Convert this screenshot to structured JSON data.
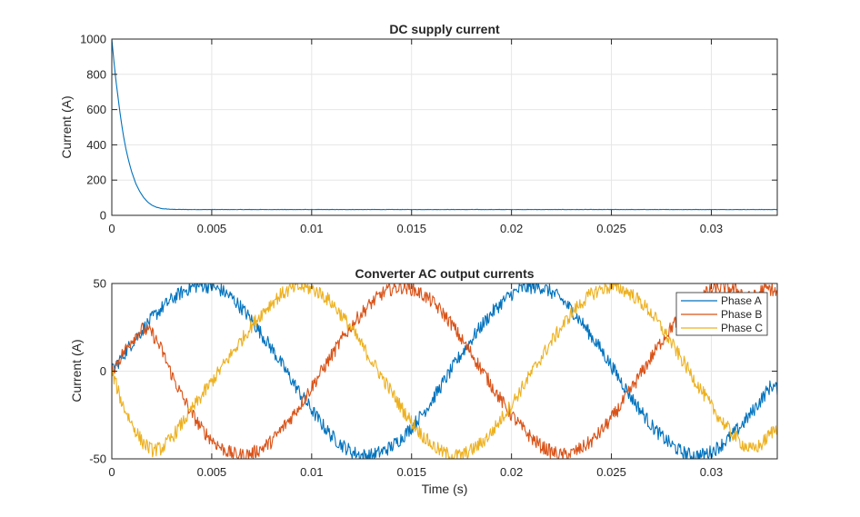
{
  "chart_data": [
    {
      "type": "line",
      "title": "DC supply current",
      "xlabel": "",
      "ylabel": "Current (A)",
      "xlim": [
        0,
        0.0333
      ],
      "ylim": [
        0,
        1000
      ],
      "x_ticks": [
        "0",
        "0.005",
        "0.01",
        "0.015",
        "0.02",
        "0.025",
        "0.03"
      ],
      "x_tick_values": [
        0,
        0.005,
        0.01,
        0.015,
        0.02,
        0.025,
        0.03
      ],
      "y_ticks": [
        "0",
        "200",
        "400",
        "600",
        "800",
        "1000"
      ],
      "y_tick_values": [
        0,
        200,
        400,
        600,
        800,
        1000
      ],
      "grid": true,
      "series": [
        {
          "color": "#0072BD",
          "x": [
            0,
            0.0001,
            0.0002,
            0.0003,
            0.0004,
            0.0005,
            0.0006,
            0.0007,
            0.0008,
            0.0009,
            0.001,
            0.0012,
            0.0014,
            0.0016,
            0.0018,
            0.002,
            0.0022,
            0.0025,
            0.003,
            0.004,
            0.005,
            0.007,
            0.01,
            0.015,
            0.02,
            0.025,
            0.03,
            0.0333
          ],
          "y": [
            1000,
            880,
            770,
            680,
            590,
            510,
            440,
            380,
            330,
            285,
            245,
            180,
            135,
            100,
            75,
            58,
            47,
            38,
            34,
            33,
            33,
            33,
            33,
            33,
            33,
            33,
            33,
            33
          ]
        }
      ]
    },
    {
      "type": "line",
      "title": "Converter AC output currents",
      "xlabel": "Time (s)",
      "ylabel": "Current (A)",
      "xlim": [
        0,
        0.0333
      ],
      "ylim": [
        -50,
        50
      ],
      "x_ticks": [
        "0",
        "0.005",
        "0.01",
        "0.015",
        "0.02",
        "0.025",
        "0.03"
      ],
      "x_tick_values": [
        0,
        0.005,
        0.01,
        0.015,
        0.02,
        0.025,
        0.03
      ],
      "y_ticks": [
        "-50",
        "0",
        "50"
      ],
      "y_tick_values": [
        -50,
        0,
        50
      ],
      "grid": true,
      "legend": "top-right",
      "series": [
        {
          "name": "Phase A",
          "color": "#0072BD",
          "x": [
            0,
            0.0005,
            0.001,
            0.0015,
            0.002,
            0.0025,
            0.003,
            0.0035,
            0.004,
            0.0045,
            0.005,
            0.0055,
            0.006,
            0.0065,
            0.007,
            0.0075,
            0.008,
            0.0085,
            0.009,
            0.0095,
            0.01,
            0.0105,
            0.011,
            0.0115,
            0.012,
            0.0125,
            0.013,
            0.0135,
            0.014,
            0.0145,
            0.015,
            0.0155,
            0.016,
            0.0165,
            0.017,
            0.0175,
            0.018,
            0.0185,
            0.019,
            0.0195,
            0.02,
            0.0205,
            0.021,
            0.0215,
            0.022,
            0.0225,
            0.023,
            0.0235,
            0.024,
            0.0245,
            0.025,
            0.0255,
            0.026,
            0.0265,
            0.027,
            0.0275,
            0.028,
            0.0285,
            0.029,
            0.0295,
            0.03,
            0.0305,
            0.031,
            0.0315,
            0.032,
            0.0325,
            0.033,
            0.0333
          ],
          "y": [
            0,
            8,
            16,
            23,
            30,
            36,
            41,
            45,
            48,
            49,
            48,
            46,
            42,
            36,
            29,
            21,
            13,
            4,
            -5,
            -14,
            -22,
            -30,
            -37,
            -42,
            -46,
            -48,
            -48,
            -46,
            -43,
            -38,
            -32,
            -25,
            -17,
            -8,
            1,
            10,
            18,
            26,
            33,
            39,
            44,
            47,
            48,
            48,
            45,
            41,
            35,
            28,
            20,
            12,
            3,
            -6,
            -15,
            -23,
            -31,
            -37,
            -42,
            -46,
            -48,
            -48,
            -46,
            -42,
            -37,
            -31,
            -24,
            -16,
            -8,
            -10
          ]
        },
        {
          "name": "Phase B",
          "color": "#D95319",
          "x": [
            0,
            0.0005,
            0.001,
            0.0015,
            0.002,
            0.0025,
            0.003,
            0.0035,
            0.004,
            0.0045,
            0.005,
            0.0055,
            0.006,
            0.0065,
            0.007,
            0.0075,
            0.008,
            0.0085,
            0.009,
            0.0095,
            0.01,
            0.0105,
            0.011,
            0.0115,
            0.012,
            0.0125,
            0.013,
            0.0135,
            0.014,
            0.0145,
            0.015,
            0.0155,
            0.016,
            0.0165,
            0.017,
            0.0175,
            0.018,
            0.0185,
            0.019,
            0.0195,
            0.02,
            0.0205,
            0.021,
            0.0215,
            0.022,
            0.0225,
            0.023,
            0.0235,
            0.024,
            0.0245,
            0.025,
            0.0255,
            0.026,
            0.0265,
            0.027,
            0.0275,
            0.028,
            0.0285,
            0.029,
            0.0295,
            0.03,
            0.0305,
            0.031,
            0.0315,
            0.032,
            0.0325,
            0.033,
            0.0333
          ],
          "y": [
            0,
            9,
            18,
            24,
            22,
            12,
            -2,
            -14,
            -24,
            -33,
            -39,
            -44,
            -47,
            -48,
            -47,
            -44,
            -40,
            -33,
            -26,
            -18,
            -9,
            0,
            9,
            18,
            26,
            33,
            39,
            44,
            47,
            48,
            47,
            44,
            40,
            34,
            27,
            18,
            10,
            1,
            -8,
            -17,
            -25,
            -32,
            -38,
            -43,
            -46,
            -48,
            -47,
            -44,
            -40,
            -34,
            -27,
            -19,
            -10,
            -1,
            8,
            17,
            25,
            32,
            38,
            43,
            46,
            48,
            47,
            45,
            41,
            46,
            47,
            44
          ]
        },
        {
          "name": "Phase C",
          "color": "#EDB120",
          "x": [
            0,
            0.0005,
            0.001,
            0.0015,
            0.002,
            0.0025,
            0.003,
            0.0035,
            0.004,
            0.0045,
            0.005,
            0.0055,
            0.006,
            0.0065,
            0.007,
            0.0075,
            0.008,
            0.0085,
            0.009,
            0.0095,
            0.01,
            0.0105,
            0.011,
            0.0115,
            0.012,
            0.0125,
            0.013,
            0.0135,
            0.014,
            0.0145,
            0.015,
            0.0155,
            0.016,
            0.0165,
            0.017,
            0.0175,
            0.018,
            0.0185,
            0.019,
            0.0195,
            0.02,
            0.0205,
            0.021,
            0.0215,
            0.022,
            0.0225,
            0.023,
            0.0235,
            0.024,
            0.0245,
            0.025,
            0.0255,
            0.026,
            0.0265,
            0.027,
            0.0275,
            0.028,
            0.0285,
            0.029,
            0.0295,
            0.03,
            0.0305,
            0.031,
            0.0315,
            0.032,
            0.0325,
            0.033,
            0.0333
          ],
          "y": [
            0,
            -18,
            -30,
            -40,
            -45,
            -44,
            -38,
            -30,
            -22,
            -14,
            -6,
            2,
            10,
            18,
            26,
            33,
            39,
            44,
            47,
            48,
            47,
            44,
            39,
            32,
            24,
            15,
            6,
            -3,
            -12,
            -21,
            -29,
            -36,
            -42,
            -46,
            -48,
            -48,
            -45,
            -41,
            -35,
            -27,
            -19,
            -10,
            -1,
            8,
            17,
            25,
            33,
            39,
            44,
            47,
            48,
            47,
            44,
            39,
            33,
            25,
            16,
            7,
            -2,
            -11,
            -20,
            -28,
            -35,
            -41,
            -45,
            -42,
            -35,
            -32
          ]
        }
      ]
    }
  ]
}
